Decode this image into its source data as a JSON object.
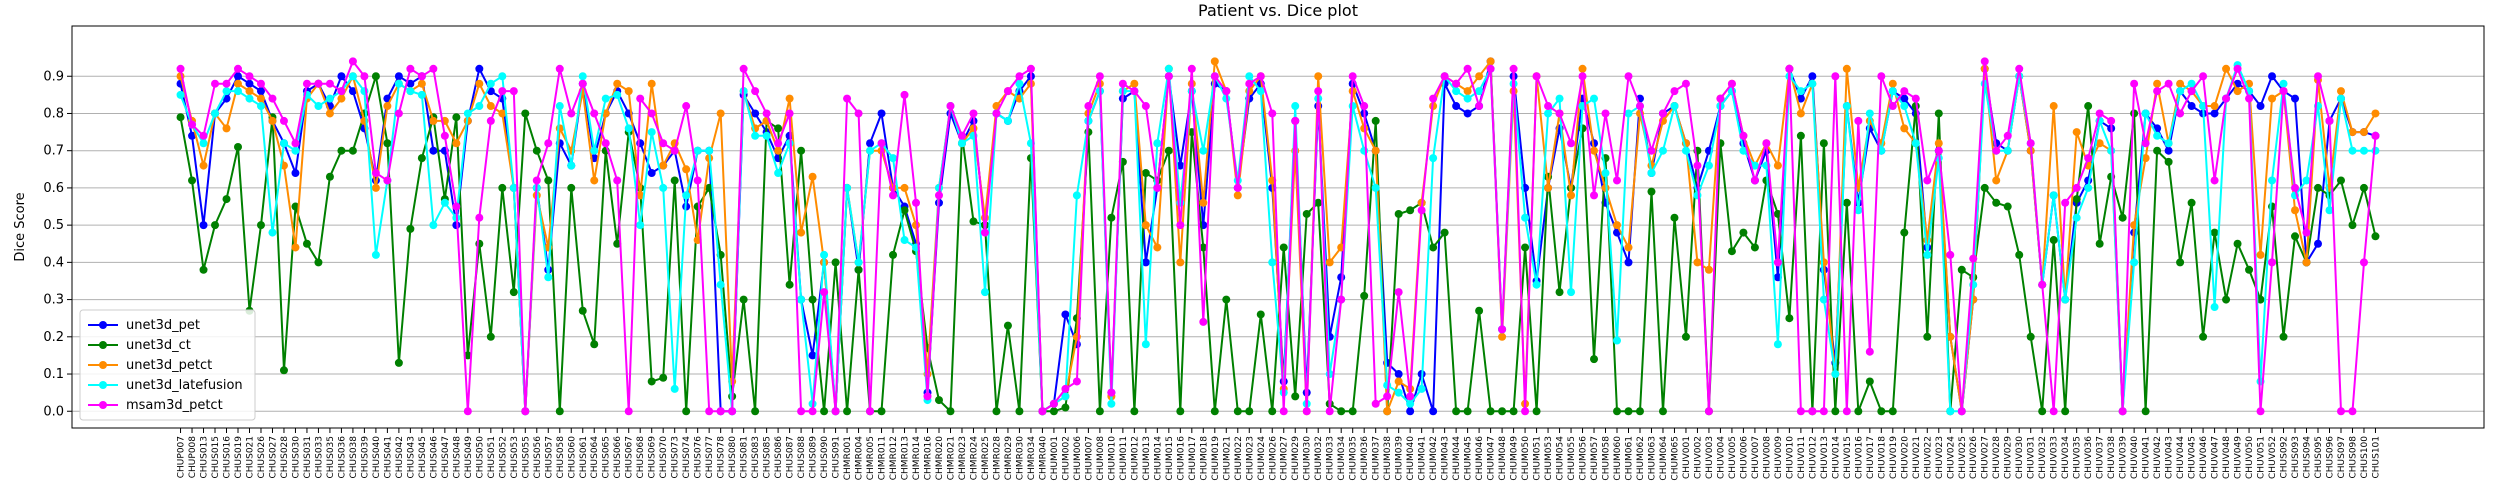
{
  "chart_data": {
    "type": "line",
    "title": "Patient vs. Dice plot",
    "y_label": "Dice Score",
    "categories": [
      "CHUP007",
      "CHUP008",
      "CHUS013",
      "CHUS015",
      "CHUS016",
      "CHUS019",
      "CHUS021",
      "CHUS026",
      "CHUS027",
      "CHUS028",
      "CHUS030",
      "CHUS031",
      "CHUS033",
      "CHUS035",
      "CHUS036",
      "CHUS038",
      "CHUS039",
      "CHUS040",
      "CHUS041",
      "CHUS042",
      "CHUS043",
      "CHUS045",
      "CHUS046",
      "CHUS047",
      "CHUS048",
      "CHUS049",
      "CHUS050",
      "CHUS051",
      "CHUS052",
      "CHUS053",
      "CHUS055",
      "CHUS056",
      "CHUS057",
      "CHUS058",
      "CHUS060",
      "CHUS061",
      "CHUS064",
      "CHUS065",
      "CHUS066",
      "CHUS067",
      "CHUS068",
      "CHUS069",
      "CHUS070",
      "CHUS073",
      "CHUS074",
      "CHUS076",
      "CHUS077",
      "CHUS078",
      "CHUS080",
      "CHUS081",
      "CHUS083",
      "CHUS085",
      "CHUS086",
      "CHUS087",
      "CHUS088",
      "CHUS089",
      "CHUS090",
      "CHUS091",
      "CHMR001",
      "CHMR004",
      "CHMR005",
      "CHMR011",
      "CHMR012",
      "CHMR013",
      "CHMR014",
      "CHMR016",
      "CHMR020",
      "CHMR021",
      "CHMR023",
      "CHMR024",
      "CHMR025",
      "CHMR028",
      "CHMR029",
      "CHMR030",
      "CHMR034",
      "CHMR040",
      "CHUM001",
      "CHUM002",
      "CHUM006",
      "CHUM007",
      "CHUM008",
      "CHUM010",
      "CHUM011",
      "CHUM012",
      "CHUM013",
      "CHUM014",
      "CHUM015",
      "CHUM016",
      "CHUM017",
      "CHUM018",
      "CHUM019",
      "CHUM021",
      "CHUM022",
      "CHUM023",
      "CHUM024",
      "CHUM026",
      "CHUM027",
      "CHUM029",
      "CHUM030",
      "CHUM032",
      "CHUM033",
      "CHUM034",
      "CHUM035",
      "CHUM036",
      "CHUM037",
      "CHUM038",
      "CHUM039",
      "CHUM040",
      "CHUM041",
      "CHUM042",
      "CHUM043",
      "CHUM044",
      "CHUM045",
      "CHUM046",
      "CHUM047",
      "CHUM048",
      "CHUM049",
      "CHUM050",
      "CHUM051",
      "CHUM053",
      "CHUM054",
      "CHUM055",
      "CHUM056",
      "CHUM057",
      "CHUM058",
      "CHUM060",
      "CHUM061",
      "CHUM062",
      "CHUM063",
      "CHUM064",
      "CHUM065",
      "CHUV001",
      "CHUV002",
      "CHUV003",
      "CHUV004",
      "CHUV005",
      "CHUV006",
      "CHUV007",
      "CHUV008",
      "CHUV009",
      "CHUV010",
      "CHUV011",
      "CHUV012",
      "CHUV013",
      "CHUV014",
      "CHUV015",
      "CHUV016",
      "CHUV017",
      "CHUV018",
      "CHUV019",
      "CHUV020",
      "CHUV021",
      "CHUV022",
      "CHUV023",
      "CHUV024",
      "CHUV025",
      "CHUV026",
      "CHUV027",
      "CHUV028",
      "CHUV029",
      "CHUV030",
      "CHUV031",
      "CHUV032",
      "CHUV033",
      "CHUV034",
      "CHUV035",
      "CHUV036",
      "CHUV037",
      "CHUV038",
      "CHUV039",
      "CHUV040",
      "CHUV041",
      "CHUV042",
      "CHUV043",
      "CHUV044",
      "CHUV045",
      "CHUV046",
      "CHUV047",
      "CHUV048",
      "CHUV049",
      "CHUV050",
      "CHUV051",
      "CHUV052",
      "CHUS092",
      "CHUS093",
      "CHUS094",
      "CHUS095",
      "CHUS096",
      "CHUS097",
      "CHUS098",
      "CHUS100",
      "CHUS101"
    ],
    "series": [
      {
        "name": "unet3d_pet",
        "color": "#0000ff",
        "values": [
          0.88,
          0.74,
          0.5,
          0.8,
          0.84,
          0.9,
          0.88,
          0.86,
          0.78,
          0.72,
          0.64,
          0.86,
          0.88,
          0.82,
          0.9,
          0.86,
          0.76,
          0.62,
          0.84,
          0.9,
          0.88,
          0.9,
          0.7,
          0.7,
          0.5,
          0.78,
          0.92,
          0.86,
          0.84,
          0.6,
          0.0,
          0.6,
          0.38,
          0.72,
          0.66,
          0.88,
          0.68,
          0.8,
          0.86,
          0.8,
          0.72,
          0.64,
          0.66,
          0.7,
          0.55,
          0.7,
          0.7,
          0.0,
          0.0,
          0.85,
          0.8,
          0.75,
          0.68,
          0.74,
          0.3,
          0.15,
          0.4,
          0.0,
          0.6,
          0.38,
          0.72,
          0.8,
          0.6,
          0.55,
          0.45,
          0.05,
          0.56,
          0.8,
          0.72,
          0.78,
          0.5,
          0.8,
          0.78,
          0.86,
          0.9,
          0.0,
          0.02,
          0.26,
          0.18,
          0.78,
          0.86,
          0.05,
          0.84,
          0.86,
          0.4,
          0.6,
          0.9,
          0.66,
          0.86,
          0.5,
          0.88,
          0.86,
          0.6,
          0.84,
          0.88,
          0.6,
          0.08,
          0.78,
          0.05,
          0.82,
          0.2,
          0.36,
          0.88,
          0.8,
          0.7,
          0.13,
          0.1,
          0.0,
          0.1,
          0.0,
          0.88,
          0.82,
          0.8,
          0.82,
          0.94,
          0.22,
          0.9,
          0.6,
          0.35,
          0.6,
          0.76,
          0.6,
          0.84,
          0.72,
          0.56,
          0.48,
          0.4,
          0.84,
          0.64,
          0.8,
          0.82,
          0.72,
          0.6,
          0.7,
          0.82,
          0.86,
          0.72,
          0.62,
          0.7,
          0.36,
          0.92,
          0.84,
          0.9,
          0.38,
          0.13,
          0.82,
          0.56,
          0.76,
          0.7,
          0.86,
          0.84,
          0.8,
          0.44,
          0.7,
          0.2,
          0.0,
          0.3,
          0.92,
          0.72,
          0.7,
          0.9,
          0.7,
          0.34,
          0.58,
          0.3,
          0.56,
          0.62,
          0.78,
          0.76,
          0.0,
          0.48,
          0.8,
          0.76,
          0.7,
          0.86,
          0.82,
          0.8,
          0.8,
          0.84,
          0.88,
          0.86,
          0.82,
          0.9,
          0.86,
          0.84,
          0.4,
          0.45,
          0.78,
          0.84,
          0.75,
          0.75,
          0.74
        ]
      },
      {
        "name": "unet3d_ct",
        "color": "#008000",
        "values": [
          0.79,
          0.62,
          0.38,
          0.5,
          0.57,
          0.71,
          0.27,
          0.5,
          0.79,
          0.11,
          0.55,
          0.45,
          0.4,
          0.63,
          0.7,
          0.7,
          0.8,
          0.9,
          0.72,
          0.13,
          0.49,
          0.68,
          0.79,
          0.57,
          0.79,
          0.15,
          0.45,
          0.2,
          0.6,
          0.32,
          0.8,
          0.7,
          0.62,
          0.0,
          0.6,
          0.27,
          0.18,
          0.7,
          0.45,
          0.75,
          0.6,
          0.08,
          0.09,
          0.62,
          0.0,
          0.55,
          0.6,
          0.42,
          0.04,
          0.3,
          0.0,
          0.78,
          0.76,
          0.34,
          0.7,
          0.3,
          0.0,
          0.4,
          0.0,
          0.38,
          0.0,
          0.0,
          0.42,
          0.54,
          0.43,
          0.17,
          0.03,
          0.0,
          0.74,
          0.51,
          0.5,
          0.0,
          0.23,
          0.0,
          0.68,
          0.0,
          0.0,
          0.01,
          0.25,
          0.75,
          0.0,
          0.52,
          0.67,
          0.0,
          0.64,
          0.62,
          0.7,
          0.0,
          0.75,
          0.44,
          0.0,
          0.3,
          0.0,
          0.0,
          0.26,
          0.0,
          0.44,
          0.04,
          0.53,
          0.56,
          0.02,
          0.0,
          0.0,
          0.31,
          0.78,
          0.0,
          0.53,
          0.54,
          0.56,
          0.44,
          0.48,
          0.0,
          0.0,
          0.27,
          0.0,
          0.0,
          0.0,
          0.44,
          0.0,
          0.63,
          0.32,
          0.6,
          0.76,
          0.14,
          0.68,
          0.0,
          0.0,
          0.0,
          0.59,
          0.0,
          0.52,
          0.2,
          0.7,
          0.0,
          0.72,
          0.43,
          0.48,
          0.44,
          0.62,
          0.53,
          0.25,
          0.74,
          0.0,
          0.72,
          0.0,
          0.56,
          0.0,
          0.08,
          0.0,
          0.0,
          0.48,
          0.82,
          0.2,
          0.8,
          0.0,
          0.38,
          0.36,
          0.6,
          0.56,
          0.55,
          0.42,
          0.2,
          0.0,
          0.46,
          0.0,
          0.57,
          0.82,
          0.45,
          0.63,
          0.52,
          0.8,
          0.0,
          0.7,
          0.67,
          0.4,
          0.56,
          0.2,
          0.48,
          0.3,
          0.45,
          0.38,
          0.3,
          0.55,
          0.2,
          0.47,
          0.4,
          0.6,
          0.58,
          0.62,
          0.5,
          0.6,
          0.47
        ]
      },
      {
        "name": "unet3d_petct",
        "color": "#ff8c00",
        "values": [
          0.9,
          0.78,
          0.66,
          0.8,
          0.76,
          0.88,
          0.86,
          0.84,
          0.78,
          0.66,
          0.44,
          0.84,
          0.88,
          0.8,
          0.84,
          0.9,
          0.78,
          0.6,
          0.82,
          0.88,
          0.86,
          0.88,
          0.78,
          0.78,
          0.72,
          0.78,
          0.88,
          0.82,
          0.8,
          0.6,
          0.0,
          0.58,
          0.44,
          0.76,
          0.7,
          0.86,
          0.62,
          0.8,
          0.88,
          0.86,
          0.58,
          0.88,
          0.66,
          0.72,
          0.65,
          0.46,
          0.68,
          0.8,
          0.08,
          0.86,
          0.76,
          0.78,
          0.7,
          0.84,
          0.48,
          0.63,
          0.4,
          0.0,
          0.6,
          0.4,
          0.7,
          0.7,
          0.6,
          0.6,
          0.5,
          0.1,
          0.6,
          0.82,
          0.72,
          0.76,
          0.52,
          0.82,
          0.86,
          0.84,
          0.88,
          0.0,
          0.02,
          0.04,
          0.2,
          0.8,
          0.88,
          0.04,
          0.86,
          0.88,
          0.5,
          0.44,
          0.92,
          0.4,
          0.88,
          0.56,
          0.94,
          0.86,
          0.58,
          0.86,
          0.9,
          0.62,
          0.06,
          0.7,
          0.0,
          0.9,
          0.4,
          0.44,
          0.86,
          0.76,
          0.7,
          0.0,
          0.08,
          0.06,
          0.56,
          0.82,
          0.9,
          0.88,
          0.86,
          0.9,
          0.94,
          0.2,
          0.86,
          0.02,
          0.9,
          0.6,
          0.8,
          0.58,
          0.92,
          0.7,
          0.6,
          0.5,
          0.44,
          0.8,
          0.66,
          0.78,
          0.82,
          0.72,
          0.4,
          0.38,
          0.84,
          0.88,
          0.74,
          0.66,
          0.72,
          0.66,
          0.92,
          0.8,
          0.88,
          0.4,
          0.1,
          0.92,
          0.6,
          0.78,
          0.72,
          0.88,
          0.76,
          0.72,
          0.46,
          0.72,
          0.2,
          0.0,
          0.3,
          0.92,
          0.62,
          0.7,
          0.9,
          0.7,
          0.34,
          0.82,
          0.3,
          0.75,
          0.66,
          0.72,
          0.7,
          0.0,
          0.5,
          0.68,
          0.88,
          0.72,
          0.88,
          0.86,
          0.82,
          0.82,
          0.92,
          0.86,
          0.88,
          0.42,
          0.84,
          0.86,
          0.54,
          0.4,
          0.89,
          0.6,
          0.86,
          0.75,
          0.75,
          0.8
        ]
      },
      {
        "name": "unet3d_latefusion",
        "color": "#00ffff",
        "values": [
          0.85,
          0.77,
          0.72,
          0.8,
          0.86,
          0.86,
          0.84,
          0.82,
          0.48,
          0.72,
          0.7,
          0.85,
          0.82,
          0.84,
          0.86,
          0.9,
          0.86,
          0.42,
          0.62,
          0.88,
          0.86,
          0.85,
          0.5,
          0.56,
          0.52,
          0.8,
          0.82,
          0.88,
          0.9,
          0.6,
          0.0,
          0.6,
          0.36,
          0.82,
          0.66,
          0.9,
          0.7,
          0.84,
          0.85,
          0.76,
          0.5,
          0.75,
          0.6,
          0.06,
          0.58,
          0.7,
          0.7,
          0.34,
          0.0,
          0.86,
          0.74,
          0.74,
          0.64,
          0.72,
          0.3,
          0.02,
          0.42,
          0.0,
          0.6,
          0.4,
          0.7,
          0.72,
          0.68,
          0.46,
          0.44,
          0.03,
          0.6,
          0.82,
          0.72,
          0.74,
          0.32,
          0.8,
          0.78,
          0.88,
          0.72,
          0.0,
          0.02,
          0.04,
          0.58,
          0.78,
          0.86,
          0.02,
          0.86,
          0.86,
          0.18,
          0.72,
          0.92,
          0.56,
          0.86,
          0.7,
          0.9,
          0.84,
          0.62,
          0.9,
          0.86,
          0.4,
          0.05,
          0.82,
          0.02,
          0.84,
          0.1,
          0.3,
          0.82,
          0.7,
          0.6,
          0.07,
          0.05,
          0.02,
          0.06,
          0.68,
          0.9,
          0.86,
          0.84,
          0.86,
          0.92,
          0.22,
          0.88,
          0.52,
          0.34,
          0.8,
          0.84,
          0.32,
          0.82,
          0.84,
          0.64,
          0.19,
          0.8,
          0.82,
          0.64,
          0.7,
          0.82,
          0.7,
          0.58,
          0.66,
          0.82,
          0.86,
          0.7,
          0.66,
          0.66,
          0.18,
          0.9,
          0.86,
          0.88,
          0.3,
          0.1,
          0.82,
          0.54,
          0.8,
          0.7,
          0.86,
          0.82,
          0.72,
          0.42,
          0.68,
          0.0,
          0.0,
          0.34,
          0.88,
          0.7,
          0.7,
          0.9,
          0.72,
          0.34,
          0.58,
          0.3,
          0.52,
          0.6,
          0.78,
          0.7,
          0.0,
          0.4,
          0.8,
          0.74,
          0.72,
          0.86,
          0.88,
          0.82,
          0.28,
          0.84,
          0.93,
          0.86,
          0.08,
          0.62,
          0.88,
          0.58,
          0.62,
          0.82,
          0.54,
          0.84,
          0.7,
          0.7,
          0.7
        ]
      },
      {
        "name": "msam3d_petct",
        "color": "#ff00ff",
        "values": [
          0.92,
          0.77,
          0.74,
          0.88,
          0.88,
          0.92,
          0.9,
          0.88,
          0.84,
          0.78,
          0.72,
          0.88,
          0.88,
          0.88,
          0.86,
          0.94,
          0.9,
          0.64,
          0.62,
          0.8,
          0.92,
          0.9,
          0.92,
          0.74,
          0.55,
          0.0,
          0.52,
          0.78,
          0.86,
          0.86,
          0.0,
          0.62,
          0.72,
          0.92,
          0.8,
          0.88,
          0.8,
          0.72,
          0.62,
          0.0,
          0.84,
          0.8,
          0.72,
          0.7,
          0.82,
          0.62,
          0.0,
          0.0,
          0.0,
          0.92,
          0.86,
          0.8,
          0.72,
          0.8,
          0.0,
          0.0,
          0.32,
          0.0,
          0.84,
          0.8,
          0.0,
          0.72,
          0.58,
          0.85,
          0.56,
          0.04,
          0.58,
          0.82,
          0.74,
          0.8,
          0.48,
          0.8,
          0.86,
          0.9,
          0.92,
          0.0,
          0.02,
          0.06,
          0.08,
          0.82,
          0.9,
          0.05,
          0.88,
          0.86,
          0.82,
          0.6,
          0.9,
          0.5,
          0.92,
          0.24,
          0.9,
          0.86,
          0.6,
          0.88,
          0.9,
          0.8,
          0.0,
          0.78,
          0.0,
          0.86,
          0.0,
          0.3,
          0.9,
          0.82,
          0.02,
          0.04,
          0.32,
          0.04,
          0.54,
          0.84,
          0.9,
          0.88,
          0.92,
          0.82,
          0.92,
          0.22,
          0.92,
          0.0,
          0.9,
          0.82,
          0.8,
          0.72,
          0.9,
          0.58,
          0.8,
          0.62,
          0.9,
          0.82,
          0.7,
          0.8,
          0.86,
          0.88,
          0.66,
          0.0,
          0.84,
          0.88,
          0.74,
          0.62,
          0.72,
          0.4,
          0.92,
          0.0,
          0.0,
          0.0,
          0.9,
          0.0,
          0.78,
          0.16,
          0.9,
          0.82,
          0.86,
          0.84,
          0.62,
          0.7,
          0.42,
          0.0,
          0.41,
          0.94,
          0.7,
          0.74,
          0.92,
          0.72,
          0.34,
          0.0,
          0.56,
          0.6,
          0.68,
          0.8,
          0.78,
          0.0,
          0.88,
          0.72,
          0.86,
          0.88,
          0.8,
          0.86,
          0.9,
          0.62,
          0.84,
          0.92,
          0.84,
          0.0,
          0.4,
          0.86,
          0.6,
          0.48,
          0.9,
          0.78,
          0.0,
          0.0,
          0.4,
          0.74
        ]
      }
    ],
    "ylim": [
      -0.045,
      1.035
    ],
    "yticks": [
      {
        "value": 0,
        "label": "0.0"
      },
      0.1,
      0.2,
      0.3,
      0.4,
      0.5,
      0.6,
      0.7,
      0.8,
      0.9
    ],
    "grid": true,
    "legend": "lower left"
  }
}
